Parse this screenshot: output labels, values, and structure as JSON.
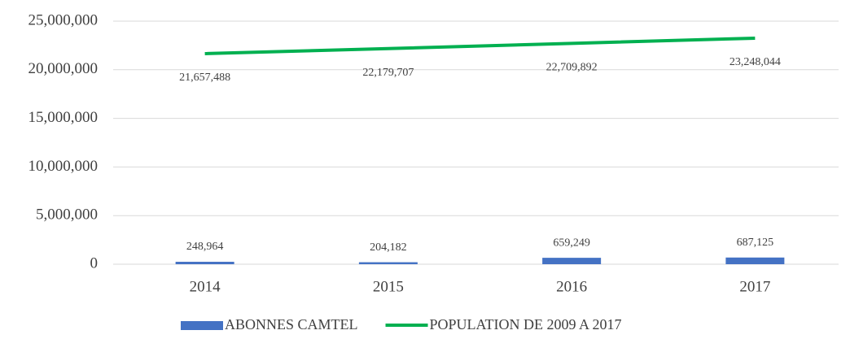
{
  "chart_data": {
    "type": "combo",
    "categories": [
      "2014",
      "2015",
      "2016",
      "2017"
    ],
    "series": [
      {
        "name": "ABONNES CAMTEL",
        "type": "bar",
        "color": "#4472c4",
        "values": [
          248964,
          204182,
          659249,
          687125
        ],
        "value_labels": [
          "248,964",
          "204,182",
          "659,249",
          "687,125"
        ]
      },
      {
        "name": "POPULATION DE 2009 A 2017",
        "type": "line",
        "color": "#00b050",
        "values": [
          21657488,
          22179707,
          22709892,
          23248044
        ],
        "value_labels": [
          "21,657,488",
          "22,179,707",
          "22,709,892",
          "23,248,044"
        ]
      }
    ],
    "ylim": [
      0,
      25000000
    ],
    "yticks": [
      0,
      {
        "value": 5000000,
        "label": "5,000,000"
      },
      {
        "value": 10000000,
        "label": "10,000,000"
      },
      {
        "value": 15000000,
        "label": "15,000,000"
      },
      {
        "value": 20000000,
        "label": "20,000,000"
      },
      {
        "value": 25000000,
        "label": "25,000,000"
      }
    ],
    "grid": true,
    "legend": "bottom"
  }
}
